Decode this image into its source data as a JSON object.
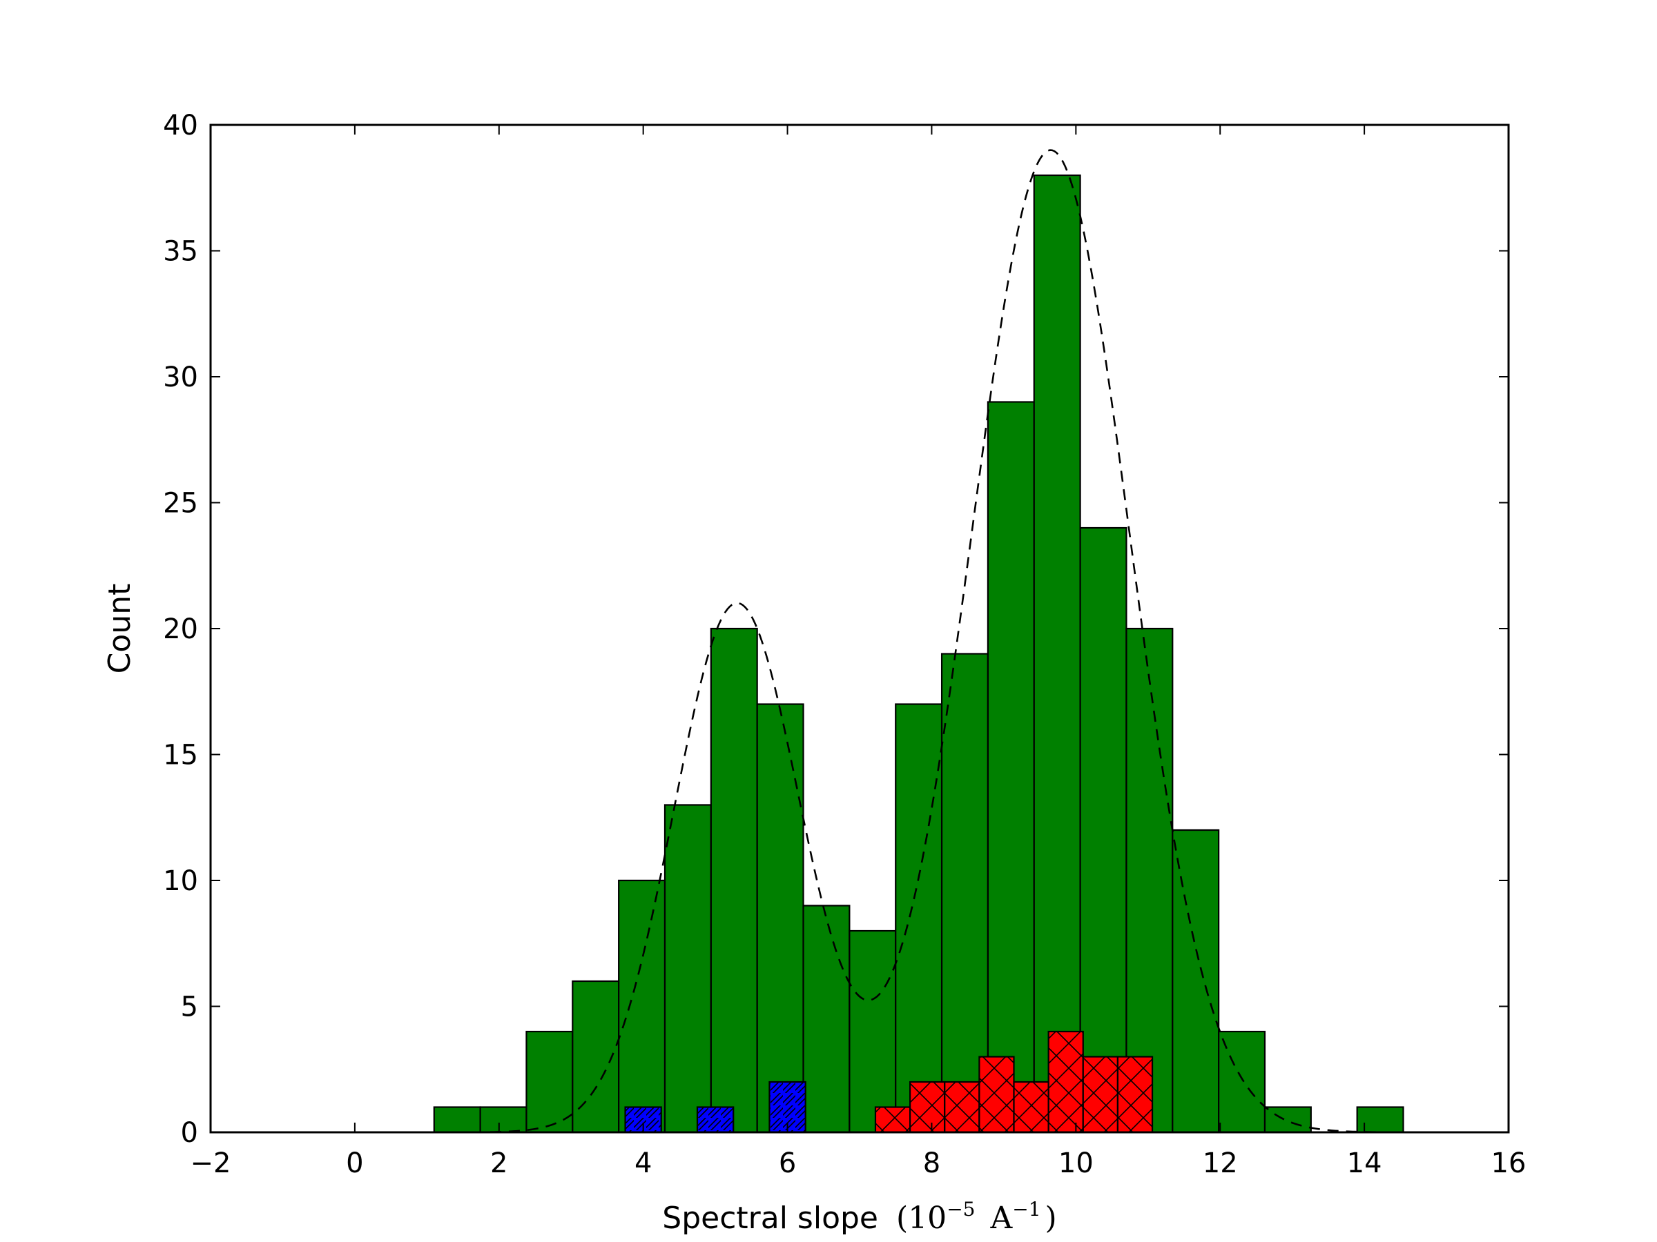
{
  "chart_data": {
    "type": "bar",
    "xlabel": "Spectral slope",
    "xlabel_unit": {
      "open": "(",
      "base": "10",
      "exponent": "−5",
      "unit": "A",
      "unit_exponent": "−1",
      "close": ")"
    },
    "ylabel": "Count",
    "xlim": [
      -2,
      16
    ],
    "ylim": [
      0,
      40
    ],
    "x_ticks": [
      -2,
      0,
      2,
      4,
      6,
      8,
      10,
      12,
      14,
      16
    ],
    "x_tick_labels": [
      "−2",
      "0",
      "2",
      "4",
      "6",
      "8",
      "10",
      "12",
      "14",
      "16"
    ],
    "y_ticks": [
      0,
      5,
      10,
      15,
      20,
      25,
      30,
      35,
      40
    ],
    "y_tick_labels": [
      "0",
      "5",
      "10",
      "15",
      "20",
      "25",
      "30",
      "35",
      "40"
    ],
    "grid": false,
    "series": [
      {
        "color": "#008000",
        "hatch": "none",
        "bin_width": 0.64,
        "bin_starts": [
          1.1,
          1.74,
          2.38,
          3.02,
          3.66,
          4.3,
          4.94,
          5.58,
          6.22,
          6.86,
          7.5,
          8.14,
          8.78,
          9.42,
          10.06,
          10.7,
          11.34,
          11.98,
          12.62,
          13.26,
          13.9
        ],
        "counts": [
          1,
          1,
          4,
          6,
          10,
          13,
          20,
          17,
          9,
          8,
          17,
          19,
          29,
          38,
          24,
          20,
          12,
          4,
          1,
          0,
          1
        ]
      },
      {
        "color": "#0000ff",
        "hatch": "diagonal",
        "bin_width": 0.5,
        "bin_starts": [
          3.75,
          4.75,
          5.75
        ],
        "counts": [
          1,
          1,
          2
        ]
      },
      {
        "color": "#ff0000",
        "hatch": "cross",
        "bin_width": 0.48,
        "bin_starts": [
          7.22,
          7.7,
          8.18,
          8.66,
          9.14,
          9.62,
          10.1,
          10.58
        ],
        "counts": [
          1,
          2,
          2,
          3,
          2,
          4,
          3,
          3
        ]
      }
    ],
    "fit_curve": {
      "style": "dashed",
      "color": "#000000",
      "components": [
        {
          "amplitude": 21,
          "mean": 5.3,
          "sigma": 0.88
        },
        {
          "amplitude": 39,
          "mean": 9.65,
          "sigma": 1.1
        }
      ]
    }
  }
}
